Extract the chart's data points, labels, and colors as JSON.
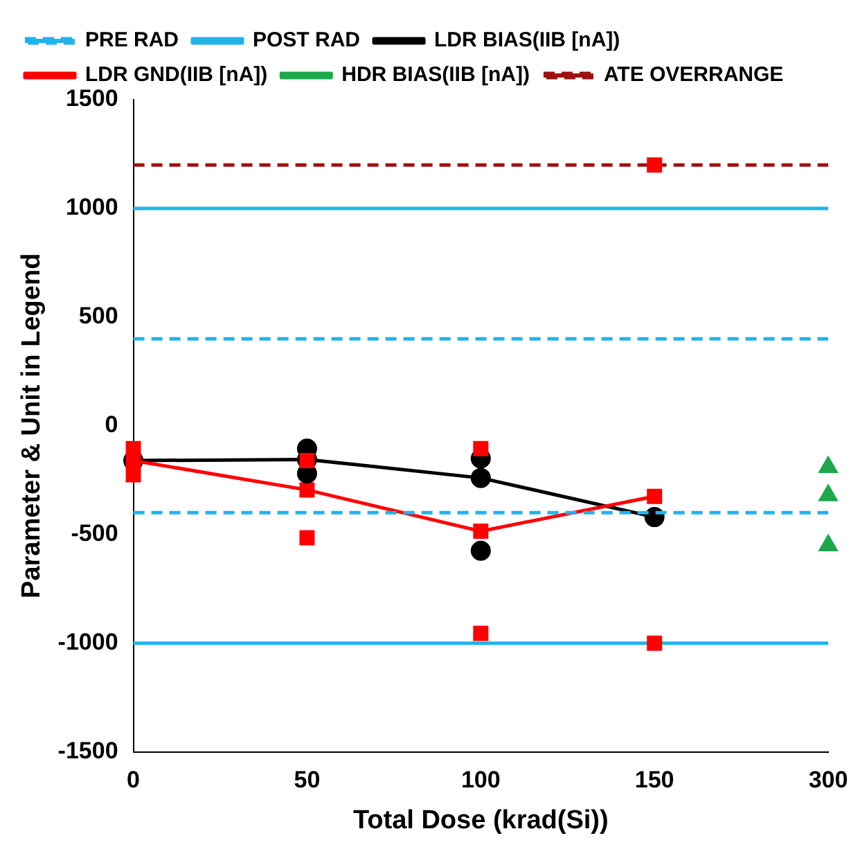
{
  "chart_data": {
    "type": "line",
    "xlabel": "Total Dose (krad(Si))",
    "ylabel": "Parameter & Unit in Legend",
    "categories": [
      "0",
      "50",
      "100",
      "150",
      "300"
    ],
    "ylim": [
      -1500,
      1500
    ],
    "yticks": [
      -1500,
      -1000,
      -500,
      0,
      500,
      1000,
      1500
    ],
    "grid": false,
    "legend": "top",
    "series": [
      {
        "name": "PRE RAD",
        "type": "line",
        "color": "#1fb4ea",
        "line_style": "dashed",
        "marker": "none",
        "values": [
          400,
          400,
          400,
          400,
          400
        ]
      },
      {
        "name": "POST RAD",
        "type": "line",
        "color": "#1fb4ea",
        "line_style": "solid",
        "marker": "none",
        "values": [
          1000,
          1000,
          1000,
          1000,
          1000
        ]
      },
      {
        "name": "LDR BIAS(IIB [nA])",
        "type": "line",
        "color": "#000000",
        "line_style": "solid",
        "marker": "circle",
        "values": [
          -160,
          -155,
          -240,
          -420,
          null
        ]
      },
      {
        "name": "LDR GND(IIB [nA])",
        "type": "line",
        "color": "#ff0000",
        "line_style": "solid",
        "marker": "square",
        "values": [
          -160,
          -295,
          -485,
          -325,
          null
        ]
      },
      {
        "name": "HDR BIAS(IIB [nA])",
        "type": "scatter",
        "color": "#1ca84a",
        "marker": "triangle",
        "x": [
          "300",
          "300",
          "300"
        ],
        "values": [
          -190,
          -320,
          -550
        ]
      },
      {
        "name": "ATE OVERRANGE",
        "type": "line",
        "color": "#a01010",
        "line_style": "dashed",
        "marker": "none",
        "values": [
          1200,
          1200,
          1200,
          1200,
          1200
        ]
      },
      {
        "type": "line",
        "color": "#1fb4ea",
        "line_style": "dashed",
        "marker": "none",
        "values": [
          -400,
          -400,
          -400,
          -400,
          -400
        ]
      },
      {
        "type": "line",
        "color": "#1fb4ea",
        "line_style": "solid",
        "marker": "none",
        "values": [
          -1000,
          -1000,
          -1000,
          -1000,
          -1000
        ]
      },
      {
        "type": "scatter",
        "color": "#000000",
        "marker": "circle",
        "x": [
          "50",
          "50",
          "100",
          "100"
        ],
        "values": [
          -105,
          -220,
          -150,
          -575
        ]
      },
      {
        "type": "scatter",
        "color": "#ff0000",
        "marker": "square",
        "x": [
          "0",
          "0",
          "50",
          "50",
          "100",
          "100",
          "150",
          "150"
        ],
        "values": [
          -105,
          -225,
          -160,
          -515,
          -105,
          -955,
          -1000,
          1200
        ]
      }
    ]
  }
}
